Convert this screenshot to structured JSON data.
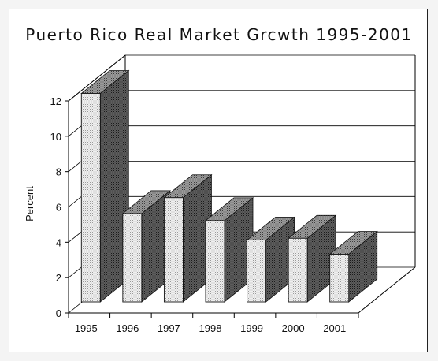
{
  "chart_data": {
    "type": "bar",
    "title": "Puerto Rico Real Market Grcwth 1995-2001",
    "xlabel": "",
    "ylabel": "Percent",
    "categories": [
      "1995",
      "1996",
      "1997",
      "1998",
      "1999",
      "2000",
      "2001"
    ],
    "values": [
      11.8,
      5.0,
      5.9,
      4.6,
      3.5,
      3.6,
      2.7
    ],
    "ylim": [
      0,
      12
    ],
    "yticks": [
      "0",
      "2",
      "4",
      "6",
      "8",
      "10",
      "12"
    ],
    "style": "3d",
    "grid": true,
    "legend": "none",
    "colors": {
      "front": "#e6e6e6",
      "side": "#4a4a4a",
      "top": "#8a8a8a",
      "grid": "#000000"
    }
  }
}
